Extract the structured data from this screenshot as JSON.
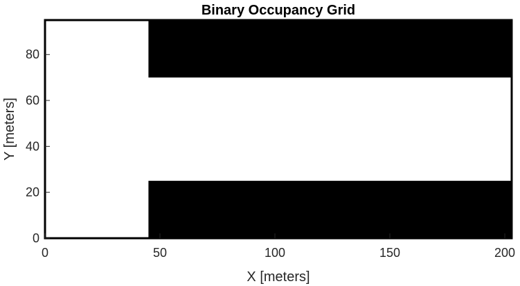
{
  "chart_data": {
    "type": "heatmap",
    "title": "Binary Occupancy Grid",
    "xlabel": "X [meters]",
    "ylabel": "Y [meters]",
    "xlim": [
      0,
      203
    ],
    "ylim": [
      0,
      95
    ],
    "xticks": [
      0,
      50,
      100,
      150,
      200
    ],
    "yticks": [
      0,
      20,
      40,
      60,
      80
    ],
    "grid": false,
    "colors": {
      "occupied": "#000000",
      "free": "#ffffff"
    },
    "occupied_regions": [
      {
        "name": "upper-occupied-region",
        "x": [
          45,
          203
        ],
        "y": [
          70,
          95
        ]
      },
      {
        "name": "lower-occupied-region",
        "x": [
          45,
          203
        ],
        "y": [
          0,
          25
        ]
      }
    ]
  }
}
